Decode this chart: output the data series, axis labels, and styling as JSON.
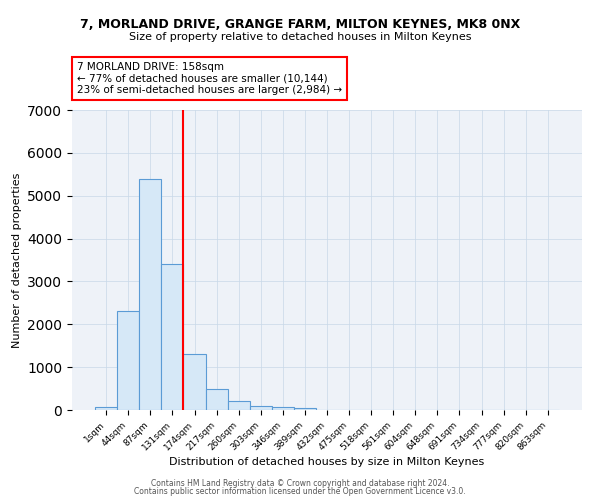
{
  "title": "7, MORLAND DRIVE, GRANGE FARM, MILTON KEYNES, MK8 0NX",
  "subtitle": "Size of property relative to detached houses in Milton Keynes",
  "xlabel": "Distribution of detached houses by size in Milton Keynes",
  "ylabel": "Number of detached properties",
  "bar_labels": [
    "1sqm",
    "44sqm",
    "87sqm",
    "131sqm",
    "174sqm",
    "217sqm",
    "260sqm",
    "303sqm",
    "346sqm",
    "389sqm",
    "432sqm",
    "475sqm",
    "518sqm",
    "561sqm",
    "604sqm",
    "648sqm",
    "691sqm",
    "734sqm",
    "777sqm",
    "820sqm",
    "863sqm"
  ],
  "bar_values": [
    75,
    2300,
    5400,
    3400,
    1300,
    480,
    200,
    100,
    75,
    50,
    0,
    0,
    0,
    0,
    0,
    0,
    0,
    0,
    0,
    0,
    0
  ],
  "bar_color": "#d6e8f7",
  "bar_edge_color": "#5b9bd5",
  "annotation_text": "7 MORLAND DRIVE: 158sqm\n← 77% of detached houses are smaller (10,144)\n23% of semi-detached houses are larger (2,984) →",
  "annotation_border_color": "red",
  "ylim": [
    0,
    7000
  ],
  "yticks": [
    0,
    1000,
    2000,
    3000,
    4000,
    5000,
    6000,
    7000
  ],
  "grid_color": "#c8d8e8",
  "background_color": "#eef2f8",
  "footer_line1": "Contains HM Land Registry data © Crown copyright and database right 2024.",
  "footer_line2": "Contains public sector information licensed under the Open Government Licence v3.0.",
  "title_fontsize": 9,
  "subtitle_fontsize": 8,
  "red_line_bar_index": 4,
  "red_line_side": "left"
}
